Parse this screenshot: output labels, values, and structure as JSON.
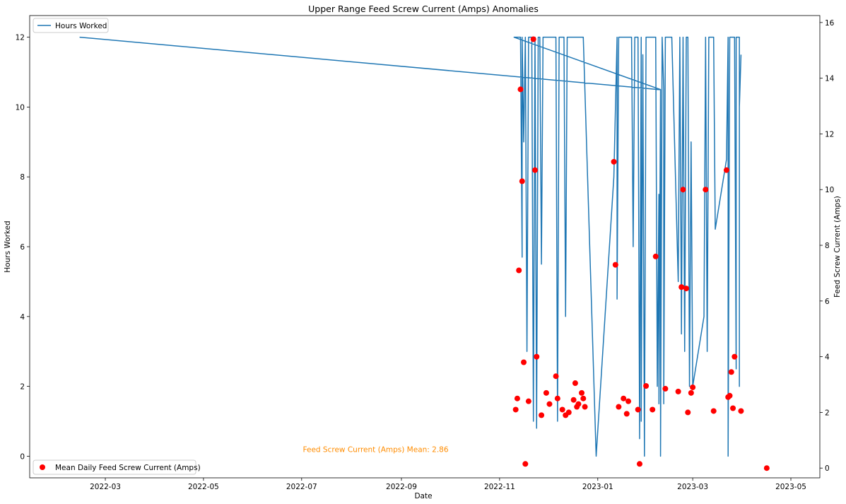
{
  "chart_data": {
    "type": "line",
    "title": "Upper Range Feed Screw Current (Amps) Anomalies",
    "xlabel": "Date",
    "ylabel": "Hours Worked",
    "y2label": "Feed Screw Current (Amps)",
    "x_ticks": [
      "2022-03",
      "2022-05",
      "2022-07",
      "2022-09",
      "2022-11",
      "2023-01",
      "2023-03",
      "2023-05"
    ],
    "y_ticks": [
      "0",
      "2",
      "4",
      "6",
      "8",
      "10",
      "12"
    ],
    "y2_ticks": [
      "0",
      "2",
      "4",
      "6",
      "8",
      "10",
      "12",
      "14",
      "16"
    ],
    "xlim": [
      "2022-01-13",
      "2023-05-19"
    ],
    "ylim": [
      -0.62,
      12.62
    ],
    "y2lim": [
      -0.35,
      16.25
    ],
    "legend_top": "top-left",
    "legend_bottom": "bottom-left",
    "colors": {
      "line": "#1f77b4",
      "points": "#ff0000",
      "annotation": "#ff8c00"
    },
    "annotation": {
      "text": "Feed Screw Current (Amps) Mean: 2.86",
      "date": "2022-08-16",
      "y": 0.2
    },
    "series": [
      {
        "name": "Hours Worked",
        "axis": "left",
        "kind": "line",
        "points": [
          [
            "2022-02-13",
            12
          ],
          [
            "2023-02-08",
            10.5
          ],
          [
            "2023-02-09",
            10.5
          ],
          [
            "2022-11-10",
            12
          ],
          [
            "2022-11-14",
            12
          ],
          [
            "2022-11-15",
            5.7
          ],
          [
            "2022-11-15",
            12
          ],
          [
            "2022-11-16",
            9
          ],
          [
            "2022-11-17",
            12
          ],
          [
            "2022-11-18",
            3
          ],
          [
            "2022-11-19",
            12
          ],
          [
            "2022-11-20",
            12
          ],
          [
            "2022-11-21",
            12
          ],
          [
            "2022-11-22",
            1
          ],
          [
            "2022-11-23",
            12
          ],
          [
            "2022-11-24",
            0.8
          ],
          [
            "2022-11-25",
            12
          ],
          [
            "2022-11-26",
            12
          ],
          [
            "2022-11-27",
            5.5
          ],
          [
            "2022-11-28",
            12
          ],
          [
            "2022-12-06",
            12
          ],
          [
            "2022-12-07",
            1
          ],
          [
            "2022-12-08",
            12
          ],
          [
            "2022-12-11",
            12
          ],
          [
            "2022-12-12",
            4
          ],
          [
            "2022-12-13",
            12
          ],
          [
            "2022-12-23",
            12
          ],
          [
            "2022-12-31",
            0
          ],
          [
            "2023-01-11",
            8
          ],
          [
            "2023-01-13",
            12
          ],
          [
            "2023-01-13",
            4.5
          ],
          [
            "2023-01-14",
            12
          ],
          [
            "2023-01-22",
            12
          ],
          [
            "2023-01-23",
            6
          ],
          [
            "2023-01-24",
            12
          ],
          [
            "2023-01-26",
            12
          ],
          [
            "2023-01-27",
            0.5
          ],
          [
            "2023-01-28",
            12
          ],
          [
            "2023-01-28",
            1
          ],
          [
            "2023-01-29",
            11.5
          ],
          [
            "2023-01-30",
            0
          ],
          [
            "2023-01-31",
            12
          ],
          [
            "2023-02-06",
            12
          ],
          [
            "2023-02-07",
            2
          ],
          [
            "2023-02-08",
            7.5
          ],
          [
            "2023-02-08",
            1.5
          ],
          [
            "2023-02-09",
            10.5
          ],
          [
            "2023-02-09",
            0
          ],
          [
            "2023-02-10",
            12
          ],
          [
            "2023-02-11",
            10.5
          ],
          [
            "2023-02-11",
            1.5
          ],
          [
            "2023-02-12",
            12
          ],
          [
            "2023-02-16",
            12
          ],
          [
            "2023-02-20",
            5
          ],
          [
            "2023-02-21",
            12
          ],
          [
            "2023-02-22",
            3.5
          ],
          [
            "2023-02-23",
            12
          ],
          [
            "2023-02-24",
            3
          ],
          [
            "2023-02-25",
            12
          ],
          [
            "2023-02-26",
            12
          ],
          [
            "2023-02-27",
            2
          ],
          [
            "2023-02-28",
            9
          ],
          [
            "2023-03-01",
            2
          ],
          [
            "2023-03-08",
            4
          ],
          [
            "2023-03-09",
            12
          ],
          [
            "2023-03-10",
            3
          ],
          [
            "2023-03-11",
            12
          ],
          [
            "2023-03-14",
            12
          ],
          [
            "2023-03-15",
            6.5
          ],
          [
            "2023-03-22",
            8.5
          ],
          [
            "2023-03-23",
            12
          ],
          [
            "2023-03-23",
            0
          ],
          [
            "2023-03-24",
            12
          ],
          [
            "2023-03-27",
            12
          ],
          [
            "2023-03-28",
            2.5
          ],
          [
            "2023-03-28",
            12
          ],
          [
            "2023-03-29",
            12
          ],
          [
            "2023-03-30",
            12
          ],
          [
            "2023-03-30",
            2
          ],
          [
            "2023-03-30",
            10
          ],
          [
            "2023-03-31",
            11.5
          ]
        ]
      },
      {
        "name": "Mean Daily Feed Screw Current (Amps)",
        "axis": "right",
        "kind": "scatter",
        "points": [
          [
            "2022-11-11",
            2.1
          ],
          [
            "2022-11-12",
            2.5
          ],
          [
            "2022-11-13",
            7.1
          ],
          [
            "2022-11-14",
            13.6
          ],
          [
            "2022-11-15",
            10.3
          ],
          [
            "2022-11-16",
            3.8
          ],
          [
            "2022-11-17",
            0.15
          ],
          [
            "2022-11-19",
            2.4
          ],
          [
            "2022-11-22",
            15.4
          ],
          [
            "2022-11-23",
            10.7
          ],
          [
            "2022-11-24",
            4.0
          ],
          [
            "2022-11-27",
            1.9
          ],
          [
            "2022-11-30",
            2.7
          ],
          [
            "2022-12-02",
            2.3
          ],
          [
            "2022-12-06",
            3.3
          ],
          [
            "2022-12-07",
            2.5
          ],
          [
            "2022-12-10",
            2.1
          ],
          [
            "2022-12-12",
            1.9
          ],
          [
            "2022-12-14",
            2.0
          ],
          [
            "2022-12-17",
            2.45
          ],
          [
            "2022-12-18",
            3.05
          ],
          [
            "2022-12-19",
            2.2
          ],
          [
            "2022-12-20",
            2.3
          ],
          [
            "2022-12-22",
            2.7
          ],
          [
            "2022-12-23",
            2.5
          ],
          [
            "2022-12-24",
            2.2
          ],
          [
            "2023-01-11",
            11.0
          ],
          [
            "2023-01-12",
            7.3
          ],
          [
            "2023-01-14",
            2.2
          ],
          [
            "2023-01-17",
            2.5
          ],
          [
            "2023-01-19",
            1.95
          ],
          [
            "2023-01-20",
            2.4
          ],
          [
            "2023-01-26",
            2.1
          ],
          [
            "2023-01-27",
            0.15
          ],
          [
            "2023-01-31",
            2.95
          ],
          [
            "2023-02-04",
            2.1
          ],
          [
            "2023-02-06",
            7.6
          ],
          [
            "2023-02-12",
            2.85
          ],
          [
            "2023-02-20",
            2.75
          ],
          [
            "2023-02-22",
            6.5
          ],
          [
            "2023-02-23",
            10.0
          ],
          [
            "2023-02-25",
            6.45
          ],
          [
            "2023-02-26",
            2.0
          ],
          [
            "2023-02-28",
            2.7
          ],
          [
            "2023-03-01",
            2.9
          ],
          [
            "2023-03-09",
            10.0
          ],
          [
            "2023-03-14",
            2.05
          ],
          [
            "2023-03-22",
            10.7
          ],
          [
            "2023-03-23",
            2.55
          ],
          [
            "2023-03-24",
            2.6
          ],
          [
            "2023-03-25",
            3.45
          ],
          [
            "2023-03-26",
            2.15
          ],
          [
            "2023-03-27",
            4.0
          ],
          [
            "2023-03-31",
            2.05
          ],
          [
            "2023-04-16",
            0.0
          ]
        ]
      }
    ]
  }
}
